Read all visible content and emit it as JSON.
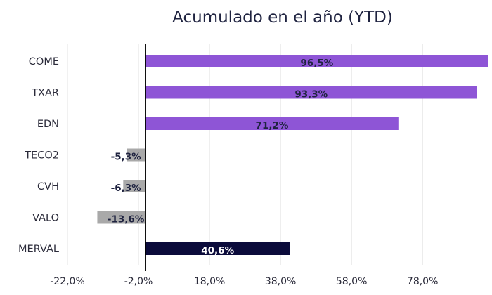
{
  "chart_data": {
    "type": "bar",
    "orientation": "horizontal",
    "title": "Acumulado en el año (YTD)",
    "categories": [
      "COME",
      "TXAR",
      "EDN",
      "TECO2",
      "CVH",
      "VALO",
      "MERVAL"
    ],
    "values": [
      96.5,
      93.3,
      71.2,
      -5.3,
      -6.3,
      -13.6,
      40.6
    ],
    "data_labels": [
      "96,5%",
      "93,3%",
      "71,2%",
      "-5,3%",
      "-6,3%",
      "-13,6%",
      "40,6%"
    ],
    "bar_colors": [
      "#8e55d6",
      "#8e55d6",
      "#8e55d6",
      "#a9a9a9",
      "#a9a9a9",
      "#a9a9a9",
      "#0b0b3b"
    ],
    "x_ticks": [
      -22,
      -2,
      18,
      38,
      58,
      78
    ],
    "x_tick_labels": [
      "-22,0%",
      "-2,0%",
      "18,0%",
      "38,0%",
      "58,0%",
      "78,0%"
    ],
    "xlim": [
      -22,
      94
    ],
    "grid": "vertical",
    "xlabel": "",
    "ylabel": "",
    "legend": "none"
  },
  "colors": {
    "grid": "#e3e3e3",
    "zero_axis": "#000000",
    "text": "#2b2b3a",
    "label_dark": "#1f2340",
    "label_light": "#ffffff"
  }
}
